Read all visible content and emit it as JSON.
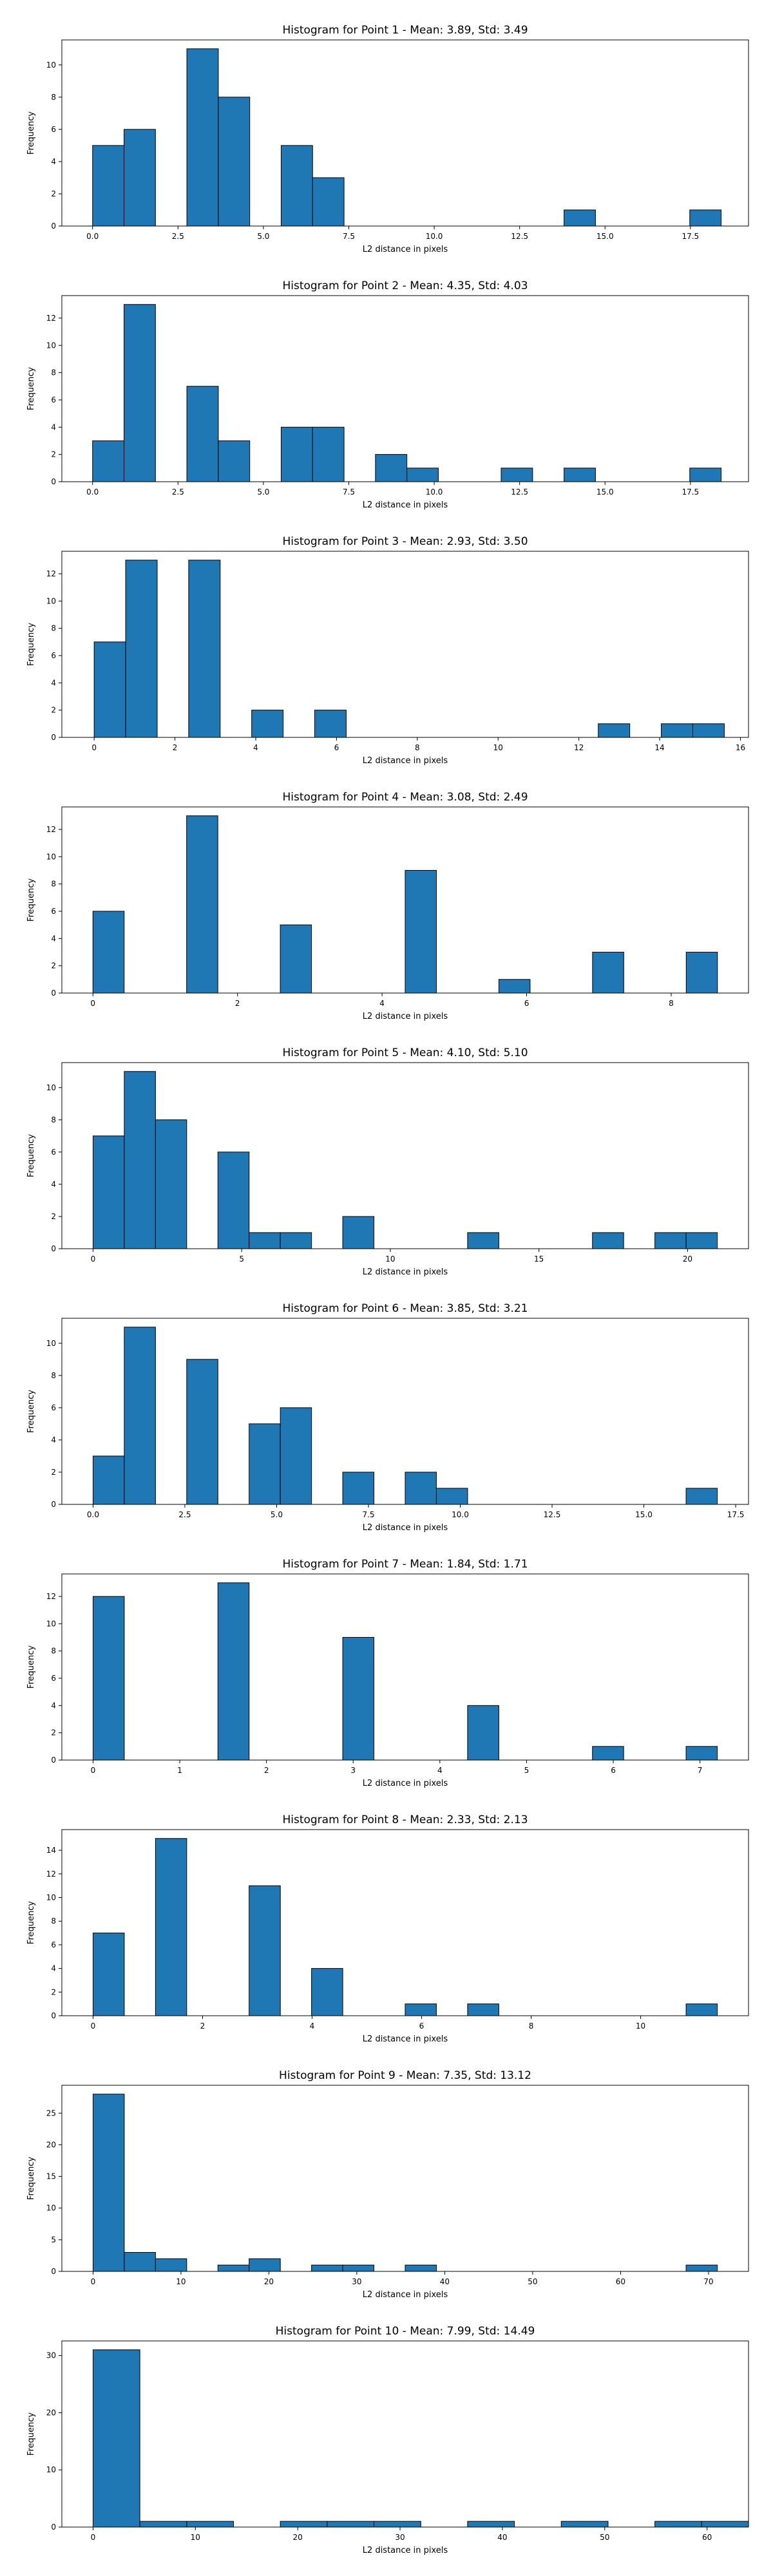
{
  "chart_data": [
    {
      "type": "bar",
      "title": "Histogram for Point 1 - Mean: 3.89, Std: 3.49",
      "xlabel": "L2 distance in pixels",
      "ylabel": "Frequency",
      "xlim": [
        -0.9,
        19.2
      ],
      "ylim": [
        0,
        11.55
      ],
      "xticks": [
        0.0,
        2.5,
        5.0,
        7.5,
        10.0,
        12.5,
        15.0,
        17.5
      ],
      "xtick_labels": [
        "0.0",
        "2.5",
        "5.0",
        "7.5",
        "10.0",
        "12.5",
        "15.0",
        "17.5"
      ],
      "yticks": [
        0,
        2,
        4,
        6,
        8,
        10
      ],
      "bins": [
        {
          "x0": 0.0,
          "x1": 0.92,
          "value": 5
        },
        {
          "x0": 0.92,
          "x1": 1.84,
          "value": 6
        },
        {
          "x0": 2.76,
          "x1": 3.68,
          "value": 11
        },
        {
          "x0": 3.68,
          "x1": 4.6,
          "value": 8
        },
        {
          "x0": 5.52,
          "x1": 6.44,
          "value": 5
        },
        {
          "x0": 6.44,
          "x1": 7.36,
          "value": 3
        },
        {
          "x0": 13.8,
          "x1": 14.72,
          "value": 1
        },
        {
          "x0": 17.48,
          "x1": 18.4,
          "value": 1
        }
      ]
    },
    {
      "type": "bar",
      "title": "Histogram for Point 2 - Mean: 4.35, Std: 4.03",
      "xlabel": "L2 distance in pixels",
      "ylabel": "Frequency",
      "xlim": [
        -0.9,
        19.2
      ],
      "ylim": [
        0,
        13.65
      ],
      "xticks": [
        0.0,
        2.5,
        5.0,
        7.5,
        10.0,
        12.5,
        15.0,
        17.5
      ],
      "xtick_labels": [
        "0.0",
        "2.5",
        "5.0",
        "7.5",
        "10.0",
        "12.5",
        "15.0",
        "17.5"
      ],
      "yticks": [
        0,
        2,
        4,
        6,
        8,
        10,
        12
      ],
      "bins": [
        {
          "x0": 0.0,
          "x1": 0.92,
          "value": 3
        },
        {
          "x0": 0.92,
          "x1": 1.84,
          "value": 13
        },
        {
          "x0": 2.76,
          "x1": 3.68,
          "value": 7
        },
        {
          "x0": 3.68,
          "x1": 4.6,
          "value": 3
        },
        {
          "x0": 5.52,
          "x1": 6.44,
          "value": 4
        },
        {
          "x0": 6.44,
          "x1": 7.36,
          "value": 4
        },
        {
          "x0": 8.28,
          "x1": 9.2,
          "value": 2
        },
        {
          "x0": 9.2,
          "x1": 10.12,
          "value": 1
        },
        {
          "x0": 11.96,
          "x1": 12.88,
          "value": 1
        },
        {
          "x0": 13.8,
          "x1": 14.72,
          "value": 1
        },
        {
          "x0": 17.48,
          "x1": 18.4,
          "value": 1
        }
      ]
    },
    {
      "type": "bar",
      "title": "Histogram for Point 3 - Mean: 2.93, Std: 3.50",
      "xlabel": "L2 distance in pixels",
      "ylabel": "Frequency",
      "xlim": [
        -0.8,
        16.2
      ],
      "ylim": [
        0,
        13.65
      ],
      "xticks": [
        0,
        2,
        4,
        6,
        8,
        10,
        12,
        14,
        16
      ],
      "xtick_labels": [
        "0",
        "2",
        "4",
        "6",
        "8",
        "10",
        "12",
        "14",
        "16"
      ],
      "yticks": [
        0,
        2,
        4,
        6,
        8,
        10,
        12
      ],
      "bins": [
        {
          "x0": 0.0,
          "x1": 0.78,
          "value": 7
        },
        {
          "x0": 0.78,
          "x1": 1.56,
          "value": 13
        },
        {
          "x0": 2.34,
          "x1": 3.12,
          "value": 13
        },
        {
          "x0": 3.9,
          "x1": 4.68,
          "value": 2
        },
        {
          "x0": 5.46,
          "x1": 6.24,
          "value": 2
        },
        {
          "x0": 12.48,
          "x1": 13.26,
          "value": 1
        },
        {
          "x0": 14.04,
          "x1": 14.82,
          "value": 1
        },
        {
          "x0": 14.82,
          "x1": 15.6,
          "value": 1
        }
      ]
    },
    {
      "type": "bar",
      "title": "Histogram for Point 4 - Mean: 3.08, Std: 2.49",
      "xlabel": "L2 distance in pixels",
      "ylabel": "Frequency",
      "xlim": [
        -0.43,
        9.07
      ],
      "ylim": [
        0,
        13.65
      ],
      "xticks": [
        0,
        2,
        4,
        6,
        8
      ],
      "xtick_labels": [
        "0",
        "2",
        "4",
        "6",
        "8"
      ],
      "yticks": [
        0,
        2,
        4,
        6,
        8,
        10,
        12
      ],
      "bins": [
        {
          "x0": 0.0,
          "x1": 0.432,
          "value": 6
        },
        {
          "x0": 1.296,
          "x1": 1.728,
          "value": 13
        },
        {
          "x0": 2.592,
          "x1": 3.024,
          "value": 5
        },
        {
          "x0": 4.32,
          "x1": 4.752,
          "value": 9
        },
        {
          "x0": 5.616,
          "x1": 6.048,
          "value": 1
        },
        {
          "x0": 6.912,
          "x1": 7.344,
          "value": 3
        },
        {
          "x0": 8.208,
          "x1": 8.64,
          "value": 3
        }
      ]
    },
    {
      "type": "bar",
      "title": "Histogram for Point 5 - Mean: 4.10, Std: 5.10",
      "xlabel": "L2 distance in pixels",
      "ylabel": "Frequency",
      "xlim": [
        -1.05,
        22.05
      ],
      "ylim": [
        0,
        11.55
      ],
      "xticks": [
        0,
        5,
        10,
        15,
        20
      ],
      "xtick_labels": [
        "0",
        "5",
        "10",
        "15",
        "20"
      ],
      "yticks": [
        0,
        2,
        4,
        6,
        8,
        10
      ],
      "bins": [
        {
          "x0": 0.0,
          "x1": 1.05,
          "value": 7
        },
        {
          "x0": 1.05,
          "x1": 2.1,
          "value": 11
        },
        {
          "x0": 2.1,
          "x1": 3.15,
          "value": 8
        },
        {
          "x0": 4.2,
          "x1": 5.25,
          "value": 6
        },
        {
          "x0": 5.25,
          "x1": 6.3,
          "value": 1
        },
        {
          "x0": 6.3,
          "x1": 7.35,
          "value": 1
        },
        {
          "x0": 8.4,
          "x1": 9.45,
          "value": 2
        },
        {
          "x0": 12.6,
          "x1": 13.65,
          "value": 1
        },
        {
          "x0": 16.8,
          "x1": 17.85,
          "value": 1
        },
        {
          "x0": 18.9,
          "x1": 19.95,
          "value": 1
        },
        {
          "x0": 19.95,
          "x1": 21.0,
          "value": 1
        }
      ]
    },
    {
      "type": "bar",
      "title": "Histogram for Point 6 - Mean: 3.85, Std: 3.21",
      "xlabel": "L2 distance in pixels",
      "ylabel": "Frequency",
      "xlim": [
        -0.85,
        17.85
      ],
      "ylim": [
        0,
        11.55
      ],
      "xticks": [
        0.0,
        2.5,
        5.0,
        7.5,
        10.0,
        12.5,
        15.0,
        17.5
      ],
      "xtick_labels": [
        "0.0",
        "2.5",
        "5.0",
        "7.5",
        "10.0",
        "12.5",
        "15.0",
        "17.5"
      ],
      "yticks": [
        0,
        2,
        4,
        6,
        8,
        10
      ],
      "bins": [
        {
          "x0": 0.0,
          "x1": 0.85,
          "value": 3
        },
        {
          "x0": 0.85,
          "x1": 1.7,
          "value": 11
        },
        {
          "x0": 2.55,
          "x1": 3.4,
          "value": 9
        },
        {
          "x0": 4.25,
          "x1": 5.1,
          "value": 5
        },
        {
          "x0": 5.1,
          "x1": 5.95,
          "value": 6
        },
        {
          "x0": 6.8,
          "x1": 7.65,
          "value": 2
        },
        {
          "x0": 8.5,
          "x1": 9.35,
          "value": 2
        },
        {
          "x0": 9.35,
          "x1": 10.2,
          "value": 1
        },
        {
          "x0": 16.15,
          "x1": 17.0,
          "value": 1
        }
      ]
    },
    {
      "type": "bar",
      "title": "Histogram for Point 7 - Mean: 1.84, Std: 1.71",
      "xlabel": "L2 distance in pixels",
      "ylabel": "Frequency",
      "xlim": [
        -0.36,
        7.56
      ],
      "ylim": [
        0,
        13.65
      ],
      "xticks": [
        0,
        1,
        2,
        3,
        4,
        5,
        6,
        7
      ],
      "xtick_labels": [
        "0",
        "1",
        "2",
        "3",
        "4",
        "5",
        "6",
        "7"
      ],
      "yticks": [
        0,
        2,
        4,
        6,
        8,
        10,
        12
      ],
      "bins": [
        {
          "x0": 0.0,
          "x1": 0.36,
          "value": 12
        },
        {
          "x0": 1.44,
          "x1": 1.8,
          "value": 13
        },
        {
          "x0": 2.88,
          "x1": 3.24,
          "value": 9
        },
        {
          "x0": 4.32,
          "x1": 4.68,
          "value": 4
        },
        {
          "x0": 5.76,
          "x1": 6.12,
          "value": 1
        },
        {
          "x0": 6.84,
          "x1": 7.2,
          "value": 1
        }
      ]
    },
    {
      "type": "bar",
      "title": "Histogram for Point 8 - Mean: 2.33, Std: 2.13",
      "xlabel": "L2 distance in pixels",
      "ylabel": "Frequency",
      "xlim": [
        -0.57,
        11.97
      ],
      "ylim": [
        0,
        15.75
      ],
      "xticks": [
        0,
        2,
        4,
        6,
        8,
        10
      ],
      "xtick_labels": [
        "0",
        "2",
        "4",
        "6",
        "8",
        "10"
      ],
      "yticks": [
        0,
        2,
        4,
        6,
        8,
        10,
        12,
        14
      ],
      "bins": [
        {
          "x0": 0.0,
          "x1": 0.57,
          "value": 7
        },
        {
          "x0": 1.14,
          "x1": 1.71,
          "value": 15
        },
        {
          "x0": 2.85,
          "x1": 3.42,
          "value": 11
        },
        {
          "x0": 3.99,
          "x1": 4.56,
          "value": 4
        },
        {
          "x0": 5.7,
          "x1": 6.27,
          "value": 1
        },
        {
          "x0": 6.84,
          "x1": 7.41,
          "value": 1
        },
        {
          "x0": 10.83,
          "x1": 11.4,
          "value": 1
        }
      ]
    },
    {
      "type": "bar",
      "title": "Histogram for Point 9 - Mean: 7.35, Std: 13.12",
      "xlabel": "L2 distance in pixels",
      "ylabel": "Frequency",
      "xlim": [
        -3.55,
        74.55
      ],
      "ylim": [
        0,
        29.4
      ],
      "xticks": [
        0,
        10,
        20,
        30,
        40,
        50,
        60,
        70
      ],
      "xtick_labels": [
        "0",
        "10",
        "20",
        "30",
        "40",
        "50",
        "60",
        "70"
      ],
      "yticks": [
        0,
        5,
        10,
        15,
        20,
        25
      ],
      "bins": [
        {
          "x0": 0.0,
          "x1": 3.55,
          "value": 28
        },
        {
          "x0": 3.55,
          "x1": 7.1,
          "value": 3
        },
        {
          "x0": 7.1,
          "x1": 10.65,
          "value": 2
        },
        {
          "x0": 14.2,
          "x1": 17.75,
          "value": 1
        },
        {
          "x0": 17.75,
          "x1": 21.3,
          "value": 2
        },
        {
          "x0": 24.85,
          "x1": 28.4,
          "value": 1
        },
        {
          "x0": 28.4,
          "x1": 31.95,
          "value": 1
        },
        {
          "x0": 35.5,
          "x1": 39.05,
          "value": 1
        },
        {
          "x0": 67.45,
          "x1": 71.0,
          "value": 1
        }
      ]
    },
    {
      "type": "bar",
      "title": "Histogram for Point 10 - Mean: 7.99, Std: 14.49",
      "xlabel": "L2 distance in pixels",
      "ylabel": "Frequency",
      "xlim": [
        -3.05,
        64.05
      ],
      "ylim": [
        0,
        32.55
      ],
      "xticks": [
        0,
        10,
        20,
        30,
        40,
        50,
        60
      ],
      "xtick_labels": [
        "0",
        "10",
        "20",
        "30",
        "40",
        "50",
        "60"
      ],
      "yticks": [
        0,
        10,
        20,
        30
      ],
      "bins": [
        {
          "x0": 0.0,
          "x1": 4.575,
          "value": 31
        },
        {
          "x0": 4.575,
          "x1": 9.15,
          "value": 1
        },
        {
          "x0": 9.15,
          "x1": 13.725,
          "value": 1
        },
        {
          "x0": 18.3,
          "x1": 22.875,
          "value": 1
        },
        {
          "x0": 22.875,
          "x1": 27.45,
          "value": 1
        },
        {
          "x0": 27.45,
          "x1": 32.025,
          "value": 1
        },
        {
          "x0": 36.6,
          "x1": 41.175,
          "value": 1
        },
        {
          "x0": 45.75,
          "x1": 50.325,
          "value": 1
        },
        {
          "x0": 54.9,
          "x1": 59.475,
          "value": 1
        },
        {
          "x0": 59.475,
          "x1": 64.05,
          "value": 1
        }
      ]
    }
  ]
}
